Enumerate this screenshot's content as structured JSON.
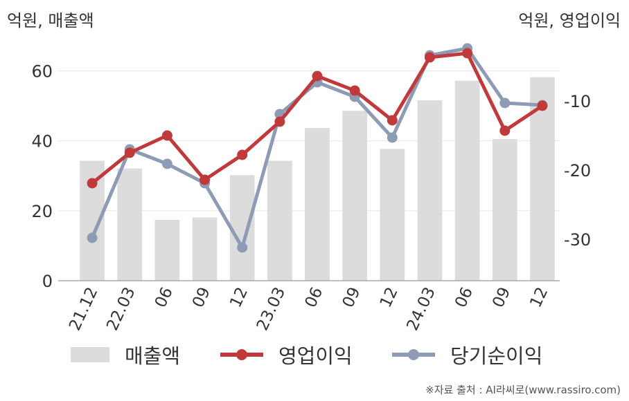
{
  "units": {
    "left": "억원, 매출액",
    "right": "억원, 영업이익"
  },
  "colors": {
    "bar": "#dcdcdc",
    "operating": "#c0393b",
    "net": "#8e9bb5",
    "grid": "#e6e6e6",
    "axis": "#aaaaaa",
    "text": "#333333"
  },
  "chart_data": {
    "type": "bar",
    "categories": [
      "21.12",
      "22.03",
      "06",
      "09",
      "12",
      "23.03",
      "06",
      "09",
      "12",
      "24.03",
      "06",
      "09",
      "12"
    ],
    "series": [
      {
        "name": "매출액",
        "type": "bar",
        "axis": "left",
        "values": [
          34.3,
          32.1,
          17.4,
          18.1,
          30.2,
          34.3,
          43.7,
          48.6,
          37.7,
          51.6,
          57.2,
          40.5,
          58.2
        ]
      },
      {
        "name": "영업이익",
        "type": "line",
        "axis": "right",
        "values": [
          -21.9,
          -17.5,
          -15.0,
          -21.4,
          -17.8,
          -13.0,
          -6.4,
          -8.5,
          -12.8,
          -3.7,
          -3.1,
          -14.3,
          -10.7
        ]
      },
      {
        "name": "당기순이익",
        "type": "line",
        "axis": "right",
        "values": [
          -29.8,
          -17.0,
          -19.1,
          -21.9,
          -31.2,
          -11.9,
          -7.3,
          -9.4,
          -15.3,
          -3.4,
          -2.4,
          -10.3,
          -10.6
        ]
      }
    ],
    "left_axis": {
      "ticks": [
        "0",
        "20",
        "40",
        "60"
      ],
      "tick_values": [
        0,
        20,
        40,
        60
      ],
      "ylim": [
        0,
        70
      ]
    },
    "right_axis": {
      "ticks": [
        "-10",
        "-20",
        "-30"
      ],
      "tick_values": [
        -10,
        -20,
        -30
      ],
      "ylim": [
        -36,
        -0.6
      ]
    },
    "grid": true,
    "legend_position": "bottom"
  },
  "legend": {
    "sales": "매출액",
    "operating": "영업이익",
    "net": "당기순이익"
  },
  "source": "※자료 출처 : AI라씨로(www.rassiro.com)"
}
